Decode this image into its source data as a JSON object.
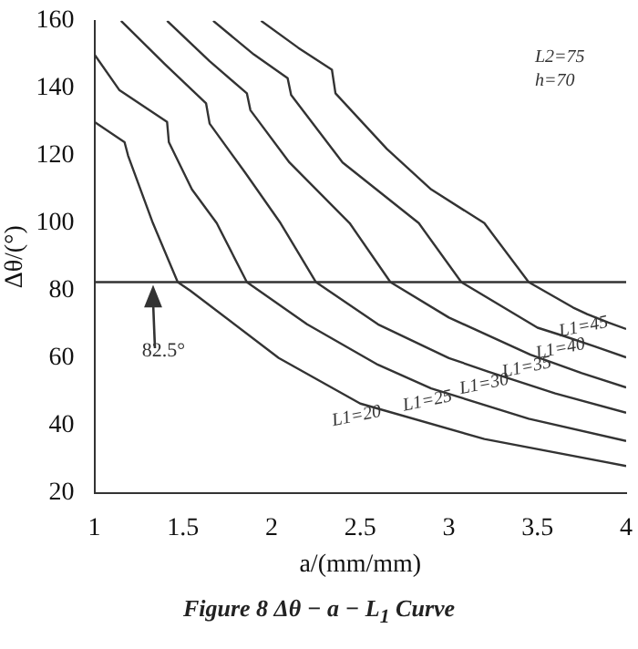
{
  "chart_data": {
    "type": "line",
    "title": "Figure 8   Δθ − a − L$_{1}$ Curve",
    "xlabel": "a/(mm/mm)",
    "ylabel": "Δθ/(°)",
    "xlim": [
      1,
      4
    ],
    "ylim": [
      20,
      160
    ],
    "xticks": [
      1,
      1.5,
      2,
      2.5,
      3,
      3.5,
      4
    ],
    "yticks": [
      20,
      40,
      60,
      80,
      100,
      120,
      140,
      160
    ],
    "grid": false,
    "marker": "none",
    "line_style": "solid",
    "series": [
      {
        "name": "L1=20",
        "color": "#333333",
        "x": [
          1,
          1.17,
          1.19,
          1.33,
          1.47,
          1.54,
          2.04,
          2.5,
          3.2,
          4
        ],
        "values": [
          130,
          124,
          120,
          100,
          82.5,
          80,
          60,
          46.5,
          36,
          28
        ]
      },
      {
        "name": "L1=25",
        "color": "#333333",
        "x": [
          1,
          1.14,
          1.41,
          1.42,
          1.55,
          1.69,
          1.86,
          2.2,
          2.6,
          2.9,
          3.45,
          4
        ],
        "values": [
          150,
          139.5,
          130,
          124,
          110,
          100,
          82.5,
          70,
          58,
          51,
          42,
          35.4
        ]
      },
      {
        "name": "L1=30",
        "color": "#333333",
        "x": [
          1.15,
          1.4,
          1.63,
          1.65,
          1.85,
          2.05,
          2.25,
          2.6,
          3,
          3.22,
          3.6,
          4
        ],
        "values": [
          160,
          147,
          135.5,
          129.5,
          115,
          100,
          82.5,
          70,
          60,
          56,
          49.5,
          43.8
        ]
      },
      {
        "name": "L1=35",
        "color": "#333333",
        "x": [
          1.41,
          1.65,
          1.86,
          1.88,
          2.1,
          2.44,
          2.67,
          3,
          3.46,
          3.75,
          4
        ],
        "values": [
          160,
          148,
          138.5,
          133.5,
          118,
          100,
          82.5,
          72,
          61,
          55.5,
          51.3
        ]
      },
      {
        "name": "L1=40",
        "color": "#333333",
        "x": [
          1.67,
          1.9,
          2.09,
          2.11,
          2.4,
          2.83,
          3.07,
          3.5,
          3.65,
          3.82,
          4
        ],
        "values": [
          160,
          150,
          143,
          138,
          118,
          100,
          82.5,
          69,
          66.5,
          63.5,
          60.2
        ]
      },
      {
        "name": "L1=45",
        "color": "#333333",
        "x": [
          1.94,
          2.15,
          2.34,
          2.36,
          2.65,
          2.9,
          3.2,
          3.45,
          3.7,
          3.78,
          3.9,
          4
        ],
        "values": [
          160,
          152,
          145.5,
          138.5,
          122,
          110,
          100,
          82.5,
          75,
          73,
          70.5,
          68.6
        ]
      }
    ],
    "ref_lines": [
      {
        "axis": "y",
        "value": 82.5,
        "label": "82.5°",
        "color": "#333333"
      }
    ],
    "annotations": [
      "L2=75",
      "h=70"
    ]
  }
}
